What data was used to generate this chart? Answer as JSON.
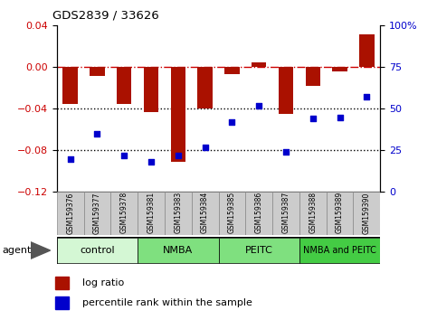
{
  "title": "GDS2839 / 33626",
  "samples": [
    "GSM159376",
    "GSM159377",
    "GSM159378",
    "GSM159381",
    "GSM159383",
    "GSM159384",
    "GSM159385",
    "GSM159386",
    "GSM159387",
    "GSM159388",
    "GSM159389",
    "GSM159390"
  ],
  "log_ratio": [
    -0.035,
    -0.008,
    -0.035,
    -0.043,
    -0.091,
    -0.04,
    -0.007,
    0.005,
    -0.045,
    -0.018,
    -0.004,
    0.032
  ],
  "percentile_rank": [
    20,
    35,
    22,
    18,
    22,
    27,
    42,
    52,
    24,
    44,
    45,
    57
  ],
  "bar_color": "#aa1100",
  "dot_color": "#0000cc",
  "ylim_left": [
    -0.12,
    0.04
  ],
  "ylim_right": [
    0,
    100
  ],
  "yticks_left": [
    -0.12,
    -0.08,
    -0.04,
    0.0,
    0.04
  ],
  "yticks_right": [
    0,
    25,
    50,
    75,
    100
  ],
  "groups": [
    {
      "label": "control",
      "start": 0,
      "end": 3,
      "color": "#d4f7d4"
    },
    {
      "label": "NMBA",
      "start": 3,
      "end": 6,
      "color": "#7fe07f"
    },
    {
      "label": "PEITC",
      "start": 6,
      "end": 9,
      "color": "#7fe07f"
    },
    {
      "label": "NMBA and PEITC",
      "start": 9,
      "end": 12,
      "color": "#44cc44"
    }
  ],
  "hline_color": "#cc0000",
  "dot_line_color": "#000000",
  "agent_label": "agent",
  "legend_log_ratio": "log ratio",
  "legend_percentile": "percentile rank within the sample",
  "bar_width": 0.55
}
